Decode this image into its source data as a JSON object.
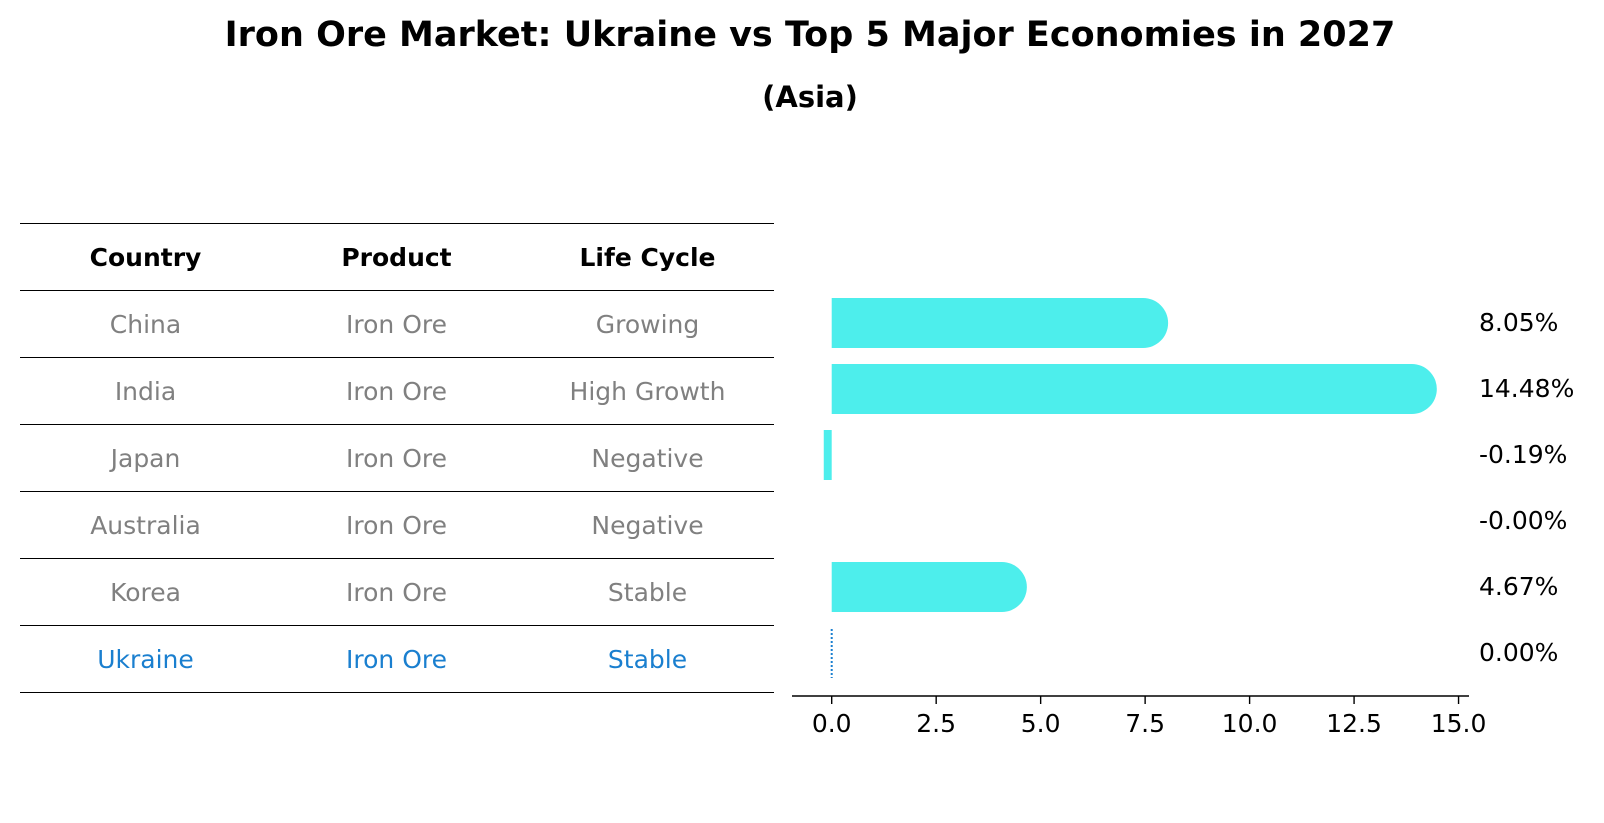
{
  "title": "Iron Ore Market: Ukraine vs Top 5 Major Economies in 2027",
  "subtitle": "(Asia)",
  "table": {
    "headers": [
      "Country",
      "Product",
      "Life Cycle"
    ],
    "rows": [
      [
        "China",
        "Iron Ore",
        "Growing"
      ],
      [
        "India",
        "Iron Ore",
        "High Growth"
      ],
      [
        "Japan",
        "Iron Ore",
        "Negative"
      ],
      [
        "Australia",
        "Iron Ore",
        "Negative"
      ],
      [
        "Korea",
        "Iron Ore",
        "Stable"
      ],
      [
        "Ukraine",
        "Iron Ore",
        "Stable"
      ]
    ],
    "highlight_row": 5,
    "highlight_color": "#1a7fcf",
    "text_color": "#808080"
  },
  "chart_data": {
    "type": "bar",
    "orientation": "horizontal",
    "categories": [
      "China",
      "India",
      "Japan",
      "Australia",
      "Korea",
      "Ukraine"
    ],
    "values": [
      8.05,
      14.48,
      -0.19,
      -0.0,
      4.67,
      0.0
    ],
    "value_labels": [
      "8.05%",
      "14.48%",
      "-0.19%",
      "-0.00%",
      "4.67%",
      "0.00%"
    ],
    "xlim": [
      -0.95,
      15.25
    ],
    "xticks": [
      0.0,
      2.5,
      5.0,
      7.5,
      10.0,
      12.5,
      15.0
    ],
    "xtick_labels": [
      "0.0",
      "2.5",
      "5.0",
      "7.5",
      "10.0",
      "12.5",
      "15.0"
    ],
    "bar_color": "#4ded ed",
    "highlight_line_color": "#1a7fcf"
  }
}
